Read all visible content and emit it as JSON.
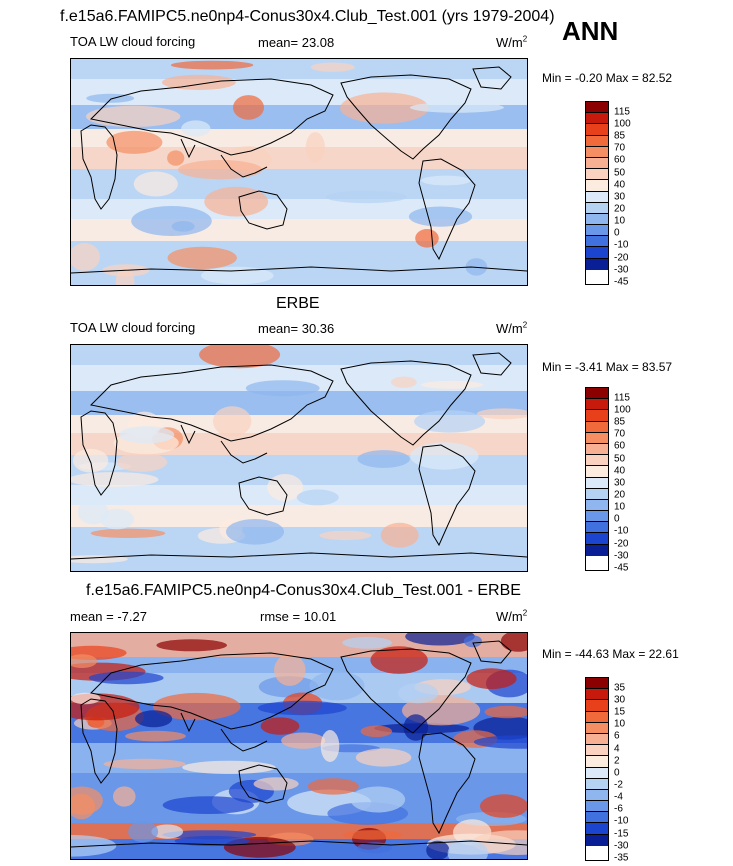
{
  "header": {
    "title": "f.e15a6.FAMIPC5.ne0np4-Conus30x4.Club_Test.001 (yrs 1979-2004)",
    "season": "ANN"
  },
  "panels": [
    {
      "heading": "",
      "variable": "TOA LW cloud forcing",
      "mean_label": "mean=  23.08",
      "rmse_label": "",
      "units_base": "W/m",
      "units_sup": "2",
      "minmax": "Min =  -0.20 Max =  82.52",
      "levels": [
        "115",
        "100",
        "85",
        "70",
        "60",
        "50",
        "40",
        "30",
        "20",
        "10",
        "0",
        "-10",
        "-20",
        "-30",
        "-45"
      ]
    },
    {
      "heading": "ERBE",
      "variable": "TOA LW cloud forcing",
      "mean_label": "mean=  30.36",
      "rmse_label": "",
      "units_base": "W/m",
      "units_sup": "2",
      "minmax": "Min =  -3.41 Max =  83.57",
      "levels": [
        "115",
        "100",
        "85",
        "70",
        "60",
        "50",
        "40",
        "30",
        "20",
        "10",
        "0",
        "-10",
        "-20",
        "-30",
        "-45"
      ]
    },
    {
      "heading": "f.e15a6.FAMIPC5.ne0np4-Conus30x4.Club_Test.001 - ERBE",
      "variable": "",
      "mean_label": "mean =  -7.27",
      "rmse_label": "rmse =  10.01",
      "units_base": "W/m",
      "units_sup": "2",
      "minmax": "Min = -44.63 Max =  22.61",
      "levels": [
        "35",
        "30",
        "15",
        "10",
        "6",
        "4",
        "2",
        "0",
        "-2",
        "-4",
        "-6",
        "-10",
        "-15",
        "-30",
        "-35"
      ]
    }
  ],
  "colors": {
    "scale": [
      "#8b0000",
      "#c81a0c",
      "#e8401a",
      "#f06a3c",
      "#f58e62",
      "#f8b094",
      "#fad2bf",
      "#fcebdf",
      "#dbe9f8",
      "#b5d2f3",
      "#8fb6ee",
      "#6a97e8",
      "#4170df",
      "#1c45cf",
      "#0a1f96"
    ],
    "ocean_base": "#dbe9f8",
    "coast": "#000000"
  }
}
